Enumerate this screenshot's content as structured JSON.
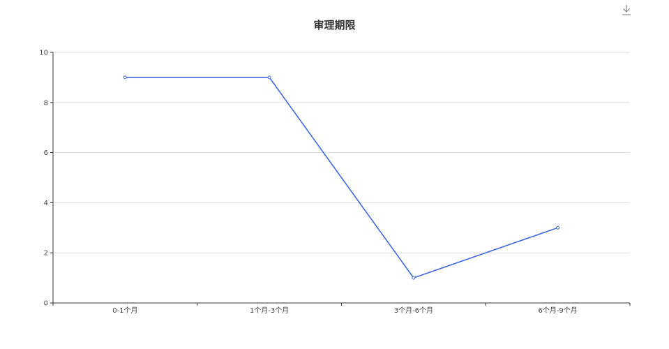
{
  "toolbar": {
    "download_icon": "download-icon"
  },
  "colors": {
    "series": "#4169e1",
    "grid": "#dddddd",
    "axis": "#333333"
  },
  "chart_data": {
    "type": "line",
    "title": "审理期限",
    "xlabel": "",
    "ylabel": "",
    "categories": [
      "0-1个月",
      "1个月-3个月",
      "3个月-6个月",
      "6个月-9个月"
    ],
    "series": [
      {
        "values": [
          9,
          9,
          1,
          3
        ]
      }
    ],
    "ylim": [
      0,
      10
    ],
    "yticks": [
      0,
      2,
      4,
      6,
      8,
      10
    ],
    "grid": true,
    "legend": "none"
  }
}
